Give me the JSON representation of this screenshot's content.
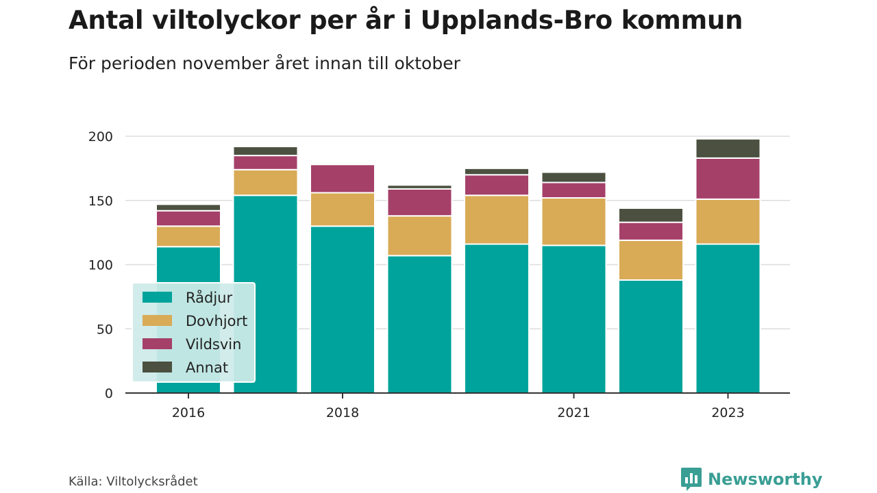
{
  "chart_data": {
    "type": "bar",
    "stacked": true,
    "title": "Antal viltolyckor per år i Upplands-Bro kommun",
    "subtitle": "För perioden november året innan till oktober",
    "x": [
      2016,
      2017,
      2018,
      2019,
      2020,
      2021,
      2022,
      2023
    ],
    "x_tick_labels": [
      "2016",
      "2018",
      "2021",
      "2023"
    ],
    "x_tick_values": [
      2016,
      2018,
      2021,
      2023
    ],
    "y_ticks": [
      "0",
      "50",
      "100",
      "150",
      "200"
    ],
    "y_tick_values": [
      0,
      50,
      100,
      150,
      200
    ],
    "ylim": [
      0,
      200
    ],
    "grid": true,
    "legend_position": "bottom-left",
    "series": [
      {
        "name": "Rådjur",
        "color": "#00a39b",
        "values": [
          114,
          154,
          130,
          107,
          116,
          115,
          88,
          116
        ]
      },
      {
        "name": "Dovhjort",
        "color": "#d9ab57",
        "values": [
          16,
          20,
          26,
          31,
          38,
          37,
          31,
          35
        ]
      },
      {
        "name": "Vildsvin",
        "color": "#a54069",
        "values": [
          12,
          11,
          22,
          21,
          16,
          12,
          14,
          32
        ]
      },
      {
        "name": "Annat",
        "color": "#4b5040",
        "values": [
          5,
          7,
          0,
          3,
          5,
          8,
          11,
          15
        ]
      }
    ]
  },
  "source": "Källa: Viltolycksrådet",
  "brand": "Newsworthy",
  "colors": {
    "brand": "#3a9e94",
    "legend_bg": "#cdebe8",
    "grid": "#dddddd",
    "axis": "#333333"
  }
}
